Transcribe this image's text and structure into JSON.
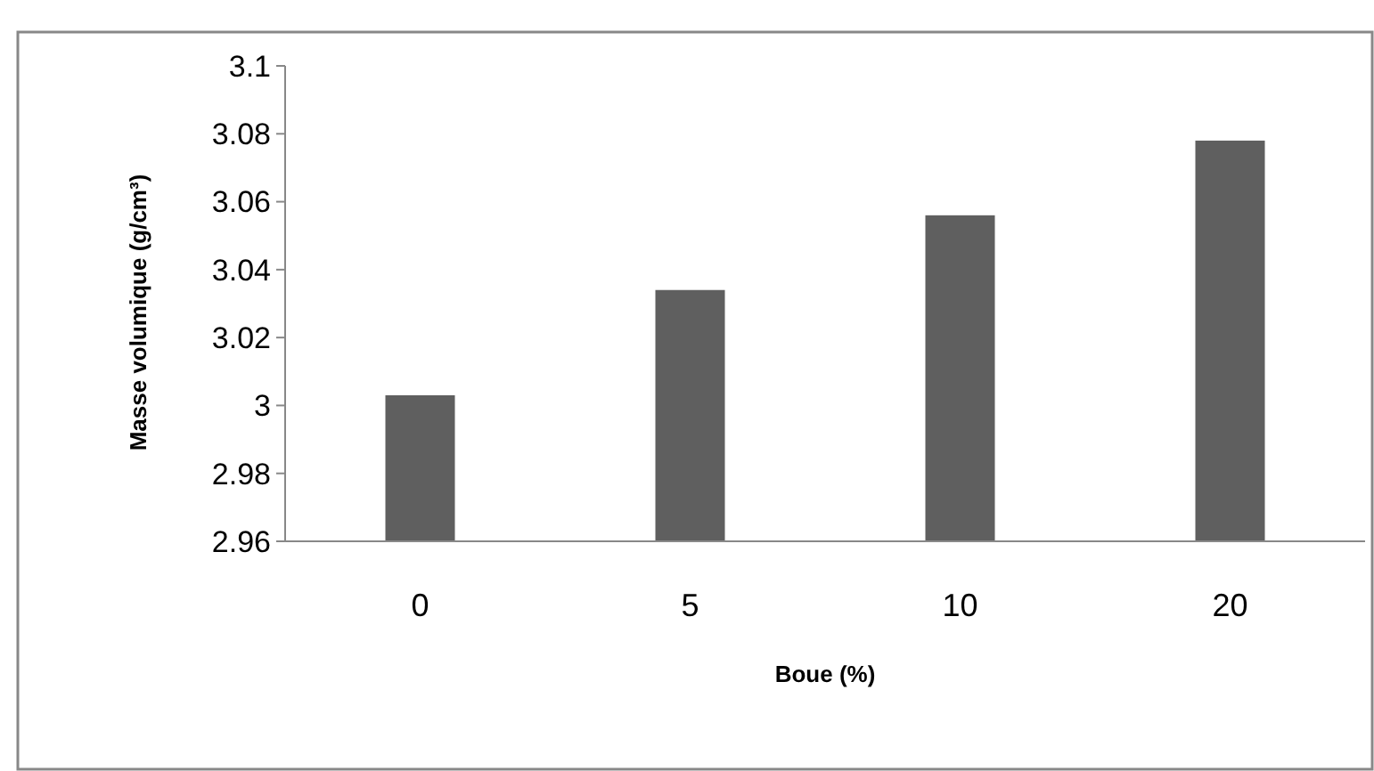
{
  "chart_data": {
    "type": "bar",
    "xlabel": "Boue (%)",
    "ylabel": "Masse volumique (g/cm³)",
    "categories": [
      "0",
      "5",
      "10",
      "20"
    ],
    "values": [
      3.003,
      3.034,
      3.056,
      3.078
    ],
    "color": "#5f5f5f",
    "ylim": [
      2.96,
      3.1
    ],
    "yticks": [
      2.96,
      2.98,
      3,
      3.02,
      3.04,
      3.06,
      3.08,
      3.1
    ],
    "grid": false
  }
}
